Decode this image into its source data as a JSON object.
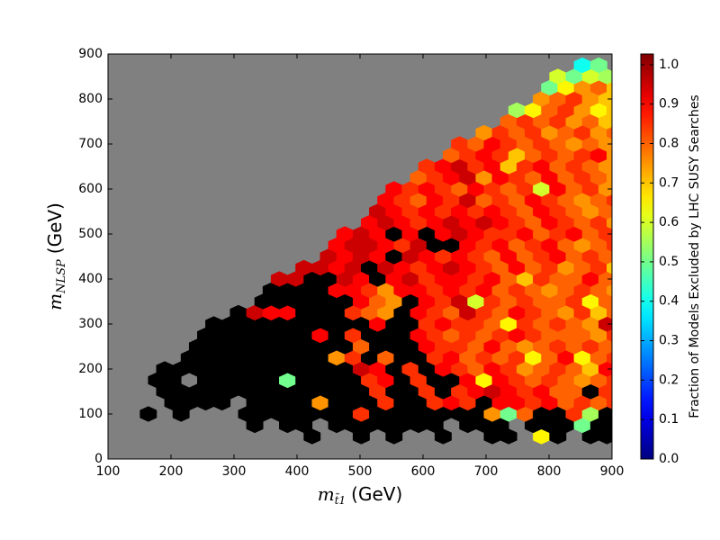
{
  "chart_data": {
    "type": "hexbin",
    "x_label": {
      "symbol": "m",
      "sub": "t̃1",
      "unit": "(GeV)"
    },
    "y_label": {
      "symbol": "m",
      "sub": "NLSP",
      "unit": "(GeV)"
    },
    "colorbar_label": "Fraction of Models Excluded by LHC SUSY Searches",
    "xlim": [
      100,
      900
    ],
    "ylim": [
      0,
      900
    ],
    "xticks": [
      100,
      200,
      300,
      400,
      500,
      600,
      700,
      800,
      900
    ],
    "yticks": [
      0,
      100,
      200,
      300,
      400,
      500,
      600,
      700,
      800,
      900
    ],
    "clim": [
      0,
      1.027
    ],
    "cticks": [
      {
        "value": 0,
        "label": "0.0"
      },
      {
        "value": 0.1,
        "label": "0.1"
      },
      {
        "value": 0.2,
        "label": "0.2"
      },
      {
        "value": 0.3,
        "label": "0.3"
      },
      {
        "value": 0.4,
        "label": "0.4"
      },
      {
        "value": 0.5,
        "label": "0.5"
      },
      {
        "value": 0.6,
        "label": "0.6"
      },
      {
        "value": 0.7,
        "label": "0.7"
      },
      {
        "value": 0.8,
        "label": "0.8"
      },
      {
        "value": 0.9,
        "label": "0.9"
      },
      {
        "value": 1,
        "label": "1.0"
      }
    ],
    "colormap": "jet",
    "full_color": "#000000",
    "background": "#808080",
    "bin_x": {
      "a": [
        164,
        190,
        216,
        242,
        268,
        294,
        320,
        346,
        372,
        398,
        424,
        450,
        476,
        502,
        528,
        554,
        580,
        606,
        632,
        658,
        684,
        710,
        736,
        762,
        788,
        814,
        840,
        866,
        892
      ],
      "b": [
        177,
        203,
        229,
        255,
        281,
        307,
        333,
        359,
        385,
        411,
        437,
        463,
        489,
        515,
        541,
        567,
        593,
        619,
        645,
        671,
        697,
        723,
        749,
        775,
        801,
        827,
        853,
        879,
        905
      ]
    },
    "rows": [
      {
        "y": 50,
        "lattice": "a",
        "start": 10,
        "values": [
          1,
          null,
          null,
          1,
          null,
          1,
          null,
          null,
          1,
          null,
          null,
          1,
          1,
          null,
          0.65,
          1,
          null,
          1,
          1
        ]
      },
      {
        "y": 75,
        "lattice": "b",
        "start": 6,
        "values": [
          1,
          null,
          1,
          1,
          null,
          1,
          1,
          1,
          1,
          1,
          1,
          1,
          null,
          1,
          1,
          1,
          null,
          1,
          1,
          1,
          0.5,
          1,
          1
        ]
      },
      {
        "y": 100,
        "lattice": "a",
        "start": 0,
        "values": [
          1,
          null,
          1,
          null,
          null,
          null,
          1,
          1,
          1,
          1,
          1,
          1,
          1,
          0.85,
          1,
          1,
          1,
          1,
          1,
          1,
          1,
          0.75,
          0.5,
          0.8,
          1,
          1,
          0.85,
          0.55,
          1
        ]
      },
      {
        "y": 125,
        "lattice": "b",
        "start": 1,
        "values": [
          1,
          1,
          1,
          1,
          null,
          1,
          1,
          1,
          1,
          0.75,
          1,
          1,
          1,
          0.85,
          1,
          1,
          0.85,
          0.9,
          0.85,
          1,
          0.9,
          0.9,
          0.85,
          0.9,
          0.8,
          0.85,
          0.8,
          0.85
        ]
      },
      {
        "y": 150,
        "lattice": "a",
        "start": 1,
        "values": [
          1,
          1,
          1,
          1,
          1,
          1,
          1,
          1,
          1,
          1,
          1,
          1,
          1,
          0.85,
          1,
          1,
          0.85,
          1,
          0.85,
          0.9,
          0.95,
          0.9,
          0.85,
          0.9,
          0.8,
          0.8,
          1,
          0.85
        ]
      },
      {
        "y": 175,
        "lattice": "b",
        "start": 0,
        "values": [
          1,
          1,
          null,
          1,
          1,
          1,
          1,
          1,
          0.5,
          1,
          1,
          1,
          1,
          0.85,
          0.9,
          1,
          0.85,
          1,
          1,
          0.9,
          0.65,
          0.9,
          0.85,
          0.8,
          0.85,
          0.8,
          0.75,
          0.8,
          0.85
        ]
      },
      {
        "y": 200,
        "lattice": "a",
        "start": 1,
        "values": [
          1,
          1,
          1,
          1,
          1,
          1,
          1,
          1,
          1,
          1,
          1,
          1,
          0.95,
          0.9,
          1,
          0.85,
          1,
          0.9,
          0.85,
          0.8,
          0.9,
          0.85,
          0.75,
          0.8,
          0.85,
          0.8,
          0.7,
          0.9
        ]
      },
      {
        "y": 225,
        "lattice": "b",
        "start": 2,
        "values": [
          1,
          1,
          1,
          1,
          1,
          1,
          1,
          1,
          1,
          0.75,
          0.85,
          1,
          0.8,
          1,
          1,
          0.85,
          0.9,
          0.8,
          0.85,
          0.8,
          0.85,
          0.65,
          0.8,
          0.9,
          0.65,
          0.8,
          0.85
        ]
      },
      {
        "y": 250,
        "lattice": "a",
        "start": 3,
        "values": [
          1,
          1,
          1,
          1,
          1,
          1,
          1,
          1,
          1,
          1,
          0.8,
          1,
          1,
          1,
          0.9,
          0.85,
          0.85,
          0.8,
          0.9,
          0.8,
          0.75,
          0.8,
          0.85,
          0.8,
          0.85,
          0.8
        ]
      },
      {
        "y": 275,
        "lattice": "b",
        "start": 3,
        "values": [
          1,
          1,
          1,
          1,
          1,
          1,
          1,
          0.9,
          1,
          0.85,
          1,
          1,
          1,
          0.9,
          0.85,
          0.8,
          0.85,
          0.8,
          0.85,
          0.9,
          0.85,
          0.8,
          0.8,
          0.8,
          0.75,
          0.85
        ]
      },
      {
        "y": 300,
        "lattice": "a",
        "start": 4,
        "values": [
          1,
          1,
          1,
          1,
          1,
          1,
          1,
          1,
          1,
          1,
          0.9,
          1,
          1,
          0.85,
          0.9,
          0.85,
          0.85,
          0.8,
          0.65,
          0.85,
          0.8,
          0.85,
          0.8,
          0.75,
          0.95
        ]
      },
      {
        "y": 325,
        "lattice": "b",
        "start": 5,
        "values": [
          1,
          0.95,
          0.9,
          0.9,
          1,
          1,
          1,
          0.85,
          0.8,
          0.75,
          1,
          0.9,
          0.85,
          0.8,
          0.95,
          0.85,
          0.8,
          0.9,
          0.85,
          0.8,
          0.75,
          0.85,
          0.7,
          0.8
        ]
      },
      {
        "y": 350,
        "lattice": "a",
        "start": 7,
        "values": [
          1,
          1,
          1,
          1,
          1,
          1,
          0.9,
          0.8,
          0.75,
          1,
          0.9,
          0.85,
          0.95,
          0.6,
          0.85,
          0.8,
          0.85,
          0.8,
          0.8,
          0.85,
          0.65,
          0.8
        ]
      },
      {
        "y": 375,
        "lattice": "b",
        "start": 7,
        "values": [
          1,
          1,
          1,
          1,
          0.9,
          0.9,
          0.85,
          0.75,
          0.9,
          0.9,
          0.85,
          0.9,
          0.85,
          0.9,
          0.8,
          0.85,
          0.8,
          0.75,
          0.8,
          0.85,
          0.8,
          0.75
        ]
      },
      {
        "y": 400,
        "lattice": "a",
        "start": 8,
        "values": [
          0.95,
          0.95,
          1,
          1,
          0.95,
          0.9,
          1,
          0.9,
          0.95,
          0.85,
          0.9,
          0.9,
          0.85,
          0.9,
          0.8,
          0.7,
          0.85,
          0.8,
          0.8,
          0.9,
          0.8
        ]
      },
      {
        "y": 425,
        "lattice": "b",
        "start": 9,
        "values": [
          0.95,
          0.95,
          0.9,
          0.95,
          1,
          0.95,
          0.9,
          0.85,
          0.9,
          0.95,
          0.9,
          0.85,
          0.8,
          0.9,
          0.8,
          0.85,
          0.75,
          0.8,
          0.85,
          0.7
        ]
      },
      {
        "y": 450,
        "lattice": "a",
        "start": 11,
        "values": [
          0.95,
          0.9,
          0.95,
          0.9,
          1,
          0.95,
          0.9,
          0.85,
          0.9,
          0.85,
          0.8,
          0.9,
          0.8,
          0.85,
          0.9,
          0.8,
          0.85,
          0.8
        ]
      },
      {
        "y": 475,
        "lattice": "b",
        "start": 11,
        "values": [
          0.9,
          0.95,
          0.95,
          0.9,
          0.85,
          0.95,
          1,
          1,
          0.9,
          0.85,
          0.9,
          0.8,
          0.85,
          0.9,
          0.8,
          0.75,
          0.8,
          0.85
        ]
      },
      {
        "y": 500,
        "lattice": "a",
        "start": 12,
        "values": [
          0.9,
          0.95,
          0.9,
          1,
          0.9,
          1,
          0.9,
          0.95,
          0.9,
          0.85,
          0.85,
          0.9,
          0.8,
          0.85,
          0.9,
          0.8,
          0.85
        ]
      },
      {
        "y": 525,
        "lattice": "b",
        "start": 13,
        "values": [
          0.9,
          0.95,
          0.9,
          0.85,
          0.9,
          0.95,
          0.9,
          0.95,
          0.9,
          0.85,
          0.8,
          0.9,
          0.85,
          0.8,
          0.85,
          0.75
        ]
      },
      {
        "y": 550,
        "lattice": "a",
        "start": 14,
        "values": [
          0.95,
          0.9,
          0.85,
          0.9,
          0.85,
          0.9,
          0.85,
          0.9,
          0.85,
          0.8,
          0.9,
          0.85,
          0.8,
          0.75,
          0.8
        ]
      },
      {
        "y": 575,
        "lattice": "b",
        "start": 14,
        "values": [
          0.9,
          0.85,
          0.8,
          0.9,
          0.85,
          0.95,
          0.8,
          0.85,
          0.8,
          0.9,
          0.85,
          0.8,
          0.75,
          0.8,
          0.85
        ]
      },
      {
        "y": 600,
        "lattice": "a",
        "start": 15,
        "values": [
          0.9,
          0.85,
          0.9,
          0.85,
          0.8,
          0.9,
          0.85,
          0.8,
          0.85,
          0.6,
          0.9,
          0.8,
          0.85,
          0.75
        ]
      },
      {
        "y": 625,
        "lattice": "b",
        "start": 16,
        "values": [
          0.8,
          0.85,
          0.9,
          0.95,
          0.75,
          0.9,
          0.85,
          0.8,
          0.9,
          0.8,
          0.85,
          0.8,
          0.75
        ]
      },
      {
        "y": 650,
        "lattice": "a",
        "start": 17,
        "values": [
          0.85,
          0.9,
          0.95,
          0.85,
          0.9,
          0.7,
          0.85,
          0.9,
          0.8,
          0.85,
          0.8,
          0.75
        ]
      },
      {
        "y": 675,
        "lattice": "b",
        "start": 18,
        "values": [
          0.8,
          0.85,
          0.9,
          0.85,
          0.7,
          0.8,
          0.85,
          0.8,
          0.85,
          0.9,
          0.75
        ]
      },
      {
        "y": 700,
        "lattice": "a",
        "start": 19,
        "values": [
          0.85,
          0.8,
          0.9,
          0.85,
          0.8,
          0.85,
          0.8,
          0.75,
          0.8,
          0.75
        ]
      },
      {
        "y": 725,
        "lattice": "b",
        "start": 20,
        "values": [
          0.75,
          0.85,
          0.8,
          0.85,
          0.75,
          0.8,
          0.85,
          0.75,
          0.8
        ]
      },
      {
        "y": 750,
        "lattice": "a",
        "start": 22,
        "values": [
          0.8,
          0.85,
          0.8,
          0.85,
          0.75,
          0.8,
          0.7
        ]
      },
      {
        "y": 775,
        "lattice": "b",
        "start": 22,
        "values": [
          0.55,
          0.65,
          0.8,
          0.85,
          0.75,
          0.65,
          0.7
        ]
      },
      {
        "y": 800,
        "lattice": "a",
        "start": 24,
        "values": [
          0.75,
          0.8,
          0.85,
          0.75,
          0.7
        ]
      },
      {
        "y": 825,
        "lattice": "b",
        "start": 24,
        "values": [
          0.5,
          0.65,
          0.75,
          0.8,
          0.7
        ]
      },
      {
        "y": 850,
        "lattice": "a",
        "start": 25,
        "values": [
          0.6,
          0.5,
          0.6,
          0.55
        ]
      },
      {
        "y": 875,
        "lattice": "b",
        "start": 26,
        "values": [
          0.4,
          0.5
        ]
      }
    ]
  }
}
